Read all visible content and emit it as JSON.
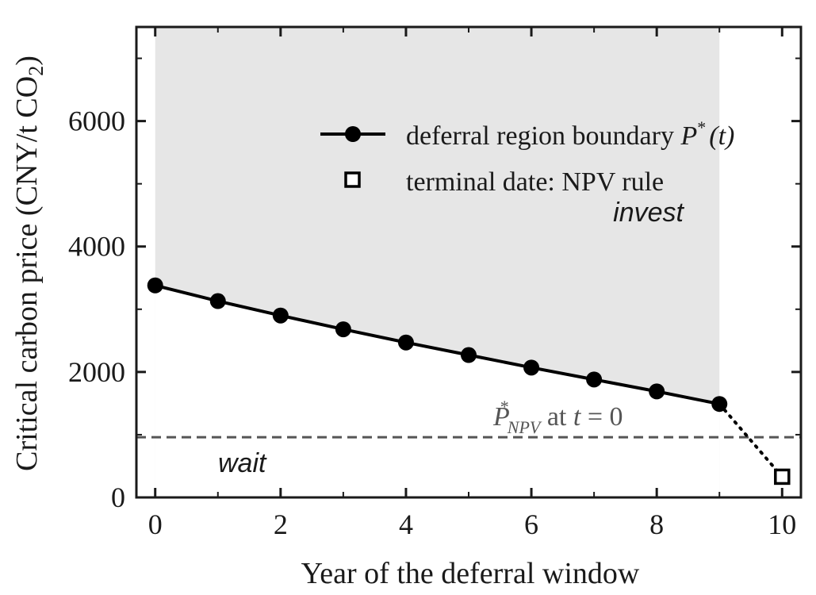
{
  "chart_data": {
    "type": "line",
    "xlabel": "Year of the deferral window",
    "ylabel": {
      "main": "Critical carbon price (CNY/t CO",
      "sub": "2",
      "close": ")"
    },
    "xlim": [
      -0.3,
      10.3
    ],
    "ylim": [
      0,
      7500
    ],
    "x_ticks": [
      0,
      2,
      4,
      6,
      8,
      10
    ],
    "y_ticks": [
      0,
      2000,
      4000,
      6000
    ],
    "minor_x_ticks": [
      1,
      3,
      5,
      7,
      9
    ],
    "series": [
      {
        "name": "deferral region boundary P*(t)",
        "x": [
          0,
          1,
          2,
          3,
          4,
          5,
          6,
          7,
          8,
          9
        ],
        "y": [
          3380,
          3130,
          2900,
          2680,
          2470,
          2270,
          2070,
          1880,
          1690,
          1490
        ],
        "color": "#000000",
        "marker": "circle"
      },
      {
        "name": "terminal date: NPV rule",
        "x": [
          10
        ],
        "y": [
          330
        ],
        "color": "#000000",
        "marker": "open-square"
      }
    ],
    "connector": {
      "from": [
        9,
        1490
      ],
      "to": [
        10,
        330
      ],
      "style": "dotted"
    },
    "invest_region": {
      "x_end": 9,
      "color": "#e6e6e6"
    },
    "npv_line": {
      "y": 960,
      "style": "dashed",
      "color": "#555555"
    },
    "legend": {
      "placement": "top-right",
      "entries": [
        {
          "text": "deferral region boundary ",
          "math_sym": "P",
          "math_sup": "*",
          "math_tail": "(t)"
        },
        {
          "text": "terminal date: NPV rule"
        }
      ]
    },
    "annotations": {
      "invest": "invest",
      "wait": "wait",
      "npv_symbol": "P",
      "npv_sup": "*",
      "npv_sub": "NPV",
      "npv_text": " at ",
      "npv_t": "t",
      "npv_eq": " = 0"
    }
  }
}
